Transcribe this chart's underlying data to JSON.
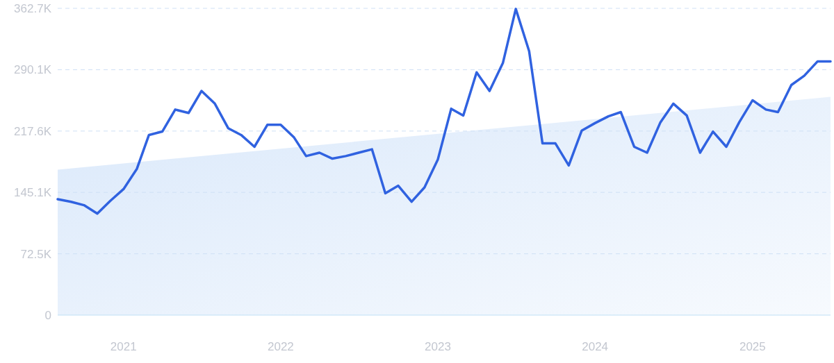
{
  "chart_data": {
    "type": "line",
    "x": [
      "2020-08",
      "2020-09",
      "2020-10",
      "2020-11",
      "2020-12",
      "2021-01",
      "2021-02",
      "2021-03",
      "2021-04",
      "2021-05",
      "2021-06",
      "2021-07",
      "2021-08",
      "2021-09",
      "2021-10",
      "2021-11",
      "2021-12",
      "2022-01",
      "2022-02",
      "2022-03",
      "2022-04",
      "2022-05",
      "2022-06",
      "2022-07",
      "2022-08",
      "2022-09",
      "2022-10",
      "2022-11",
      "2022-12",
      "2023-01",
      "2023-02",
      "2023-03",
      "2023-04",
      "2023-05",
      "2023-06",
      "2023-07",
      "2023-08",
      "2023-09",
      "2023-10",
      "2023-11",
      "2023-12",
      "2024-01",
      "2024-02",
      "2024-03",
      "2024-04",
      "2024-05",
      "2024-06",
      "2024-07",
      "2024-08",
      "2024-09",
      "2024-10",
      "2024-11",
      "2024-12",
      "2025-01",
      "2025-02",
      "2025-03",
      "2025-04",
      "2025-05",
      "2025-06",
      "2025-07"
    ],
    "series": [
      {
        "type": "area",
        "x": [
          "2020-08",
          "2025-07"
        ],
        "values": [
          172,
          258
        ],
        "color": "#d6e6fa"
      },
      {
        "color": "#3062e0",
        "values": [
          137,
          134,
          130,
          120,
          135,
          149,
          173,
          213,
          217,
          243,
          239,
          265,
          250,
          221,
          213,
          199,
          225,
          225,
          210,
          188,
          192,
          185,
          188,
          192,
          196,
          144,
          153,
          134,
          151,
          184,
          244,
          236,
          287,
          265,
          298,
          362,
          312,
          203,
          203,
          177,
          218,
          227,
          235,
          240,
          199,
          192,
          228,
          250,
          236,
          192,
          217,
          199,
          228,
          254,
          243,
          240,
          272,
          283,
          300,
          300
        ]
      }
    ],
    "xlim": [
      "2020-08",
      "2025-07"
    ],
    "xticks": [
      "2021",
      "2022",
      "2023",
      "2024",
      "2025"
    ],
    "ylim": [
      0,
      362.7
    ],
    "yticks": [
      0,
      {
        "value": 72.5,
        "label": "72.5K"
      },
      {
        "value": 145.1,
        "label": "145.1K"
      },
      {
        "value": 217.6,
        "label": "217.6K"
      },
      {
        "value": 290.1,
        "label": "290.1K"
      },
      {
        "value": 362.7,
        "label": "362.7K"
      }
    ],
    "grid": "y",
    "marker": "none",
    "line_style": "solid"
  }
}
